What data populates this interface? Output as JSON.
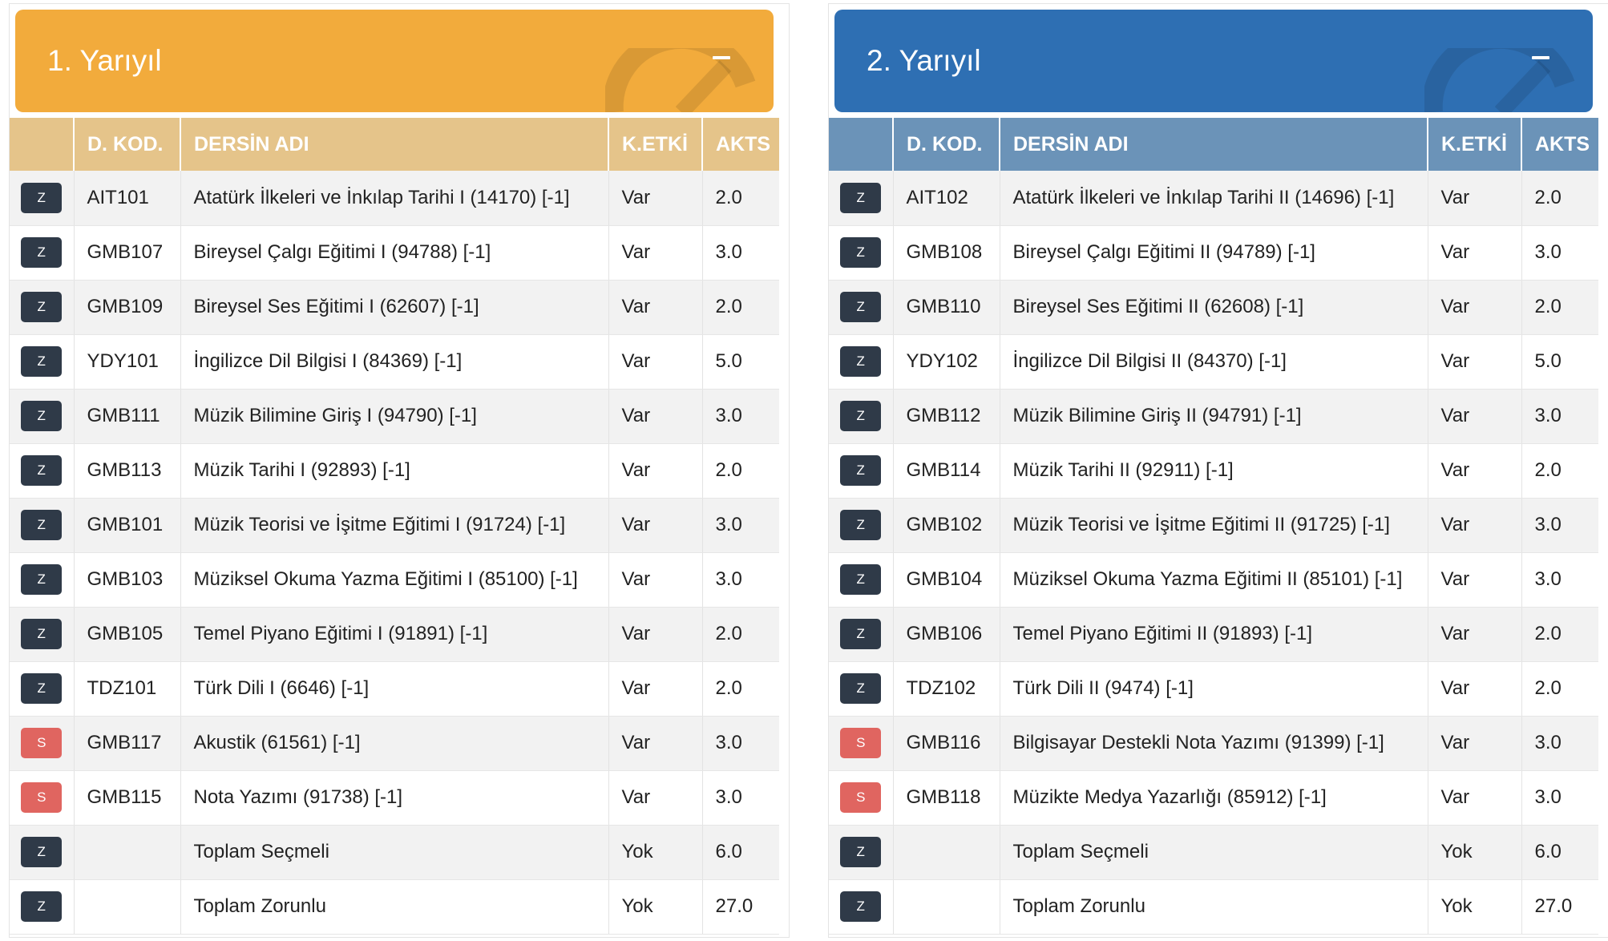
{
  "colors": {
    "semester1_header": "#f2ab3c",
    "semester1_table_head": "#e5c48a",
    "semester2_header": "#2e6fb3",
    "semester2_table_head": "#6b93b8",
    "badge_Z": "#2f3a48",
    "badge_S": "#e06560"
  },
  "columns": {
    "code": "D. KOD.",
    "name": "DERSİN ADI",
    "k_etki": "K.ETKİ",
    "akts": "AKTS"
  },
  "semesters": [
    {
      "title": "1. Yarıyıl",
      "collapse_icon": "minus-icon",
      "rows": [
        {
          "badge": "Z",
          "code": "AIT101",
          "name": "Atatürk İlkeleri ve İnkılap Tarihi I (14170) [-1]",
          "k_etki": "Var",
          "akts": "2.0"
        },
        {
          "badge": "Z",
          "code": "GMB107",
          "name": "Bireysel Çalgı Eğitimi I (94788) [-1]",
          "k_etki": "Var",
          "akts": "3.0"
        },
        {
          "badge": "Z",
          "code": "GMB109",
          "name": "Bireysel Ses Eğitimi I (62607) [-1]",
          "k_etki": "Var",
          "akts": "2.0"
        },
        {
          "badge": "Z",
          "code": "YDY101",
          "name": "İngilizce Dil Bilgisi I (84369) [-1]",
          "k_etki": "Var",
          "akts": "5.0"
        },
        {
          "badge": "Z",
          "code": "GMB111",
          "name": "Müzik Bilimine Giriş I (94790) [-1]",
          "k_etki": "Var",
          "akts": "3.0"
        },
        {
          "badge": "Z",
          "code": "GMB113",
          "name": "Müzik Tarihi I (92893) [-1]",
          "k_etki": "Var",
          "akts": "2.0"
        },
        {
          "badge": "Z",
          "code": "GMB101",
          "name": "Müzik Teorisi ve İşitme Eğitimi I (91724) [-1]",
          "k_etki": "Var",
          "akts": "3.0"
        },
        {
          "badge": "Z",
          "code": "GMB103",
          "name": "Müziksel Okuma Yazma Eğitimi I (85100) [-1]",
          "k_etki": "Var",
          "akts": "3.0"
        },
        {
          "badge": "Z",
          "code": "GMB105",
          "name": "Temel Piyano Eğitimi I (91891) [-1]",
          "k_etki": "Var",
          "akts": "2.0"
        },
        {
          "badge": "Z",
          "code": "TDZ101",
          "name": "Türk Dili I (6646) [-1]",
          "k_etki": "Var",
          "akts": "2.0"
        },
        {
          "badge": "S",
          "code": "GMB117",
          "name": "Akustik (61561) [-1]",
          "k_etki": "Var",
          "akts": "3.0"
        },
        {
          "badge": "S",
          "code": "GMB115",
          "name": "Nota Yazımı (91738) [-1]",
          "k_etki": "Var",
          "akts": "3.0"
        },
        {
          "badge": "Z",
          "code": "",
          "name": "Toplam Seçmeli",
          "k_etki": "Yok",
          "akts": "6.0"
        },
        {
          "badge": "Z",
          "code": "",
          "name": "Toplam Zorunlu",
          "k_etki": "Yok",
          "akts": "27.0"
        }
      ]
    },
    {
      "title": "2. Yarıyıl",
      "collapse_icon": "minus-icon",
      "rows": [
        {
          "badge": "Z",
          "code": "AIT102",
          "name": "Atatürk İlkeleri ve İnkılap Tarihi II (14696) [-1]",
          "k_etki": "Var",
          "akts": "2.0"
        },
        {
          "badge": "Z",
          "code": "GMB108",
          "name": "Bireysel Çalgı Eğitimi II (94789) [-1]",
          "k_etki": "Var",
          "akts": "3.0"
        },
        {
          "badge": "Z",
          "code": "GMB110",
          "name": "Bireysel Ses Eğitimi II (62608) [-1]",
          "k_etki": "Var",
          "akts": "2.0"
        },
        {
          "badge": "Z",
          "code": "YDY102",
          "name": "İngilizce Dil Bilgisi II (84370) [-1]",
          "k_etki": "Var",
          "akts": "5.0"
        },
        {
          "badge": "Z",
          "code": "GMB112",
          "name": "Müzik Bilimine Giriş II (94791) [-1]",
          "k_etki": "Var",
          "akts": "3.0"
        },
        {
          "badge": "Z",
          "code": "GMB114",
          "name": "Müzik Tarihi II (92911) [-1]",
          "k_etki": "Var",
          "akts": "2.0"
        },
        {
          "badge": "Z",
          "code": "GMB102",
          "name": "Müzik Teorisi ve İşitme Eğitimi II (91725) [-1]",
          "k_etki": "Var",
          "akts": "3.0"
        },
        {
          "badge": "Z",
          "code": "GMB104",
          "name": "Müziksel Okuma Yazma Eğitimi II (85101) [-1]",
          "k_etki": "Var",
          "akts": "3.0"
        },
        {
          "badge": "Z",
          "code": "GMB106",
          "name": "Temel Piyano Eğitimi II (91893) [-1]",
          "k_etki": "Var",
          "akts": "2.0"
        },
        {
          "badge": "Z",
          "code": "TDZ102",
          "name": "Türk Dili II (9474) [-1]",
          "k_etki": "Var",
          "akts": "2.0"
        },
        {
          "badge": "S",
          "code": "GMB116",
          "name": "Bilgisayar Destekli Nota Yazımı (91399) [-1]",
          "k_etki": "Var",
          "akts": "3.0"
        },
        {
          "badge": "S",
          "code": "GMB118",
          "name": "Müzikte Medya Yazarlığı (85912) [-1]",
          "k_etki": "Var",
          "akts": "3.0"
        },
        {
          "badge": "Z",
          "code": "",
          "name": "Toplam Seçmeli",
          "k_etki": "Yok",
          "akts": "6.0"
        },
        {
          "badge": "Z",
          "code": "",
          "name": "Toplam Zorunlu",
          "k_etki": "Yok",
          "akts": "27.0"
        }
      ]
    }
  ]
}
